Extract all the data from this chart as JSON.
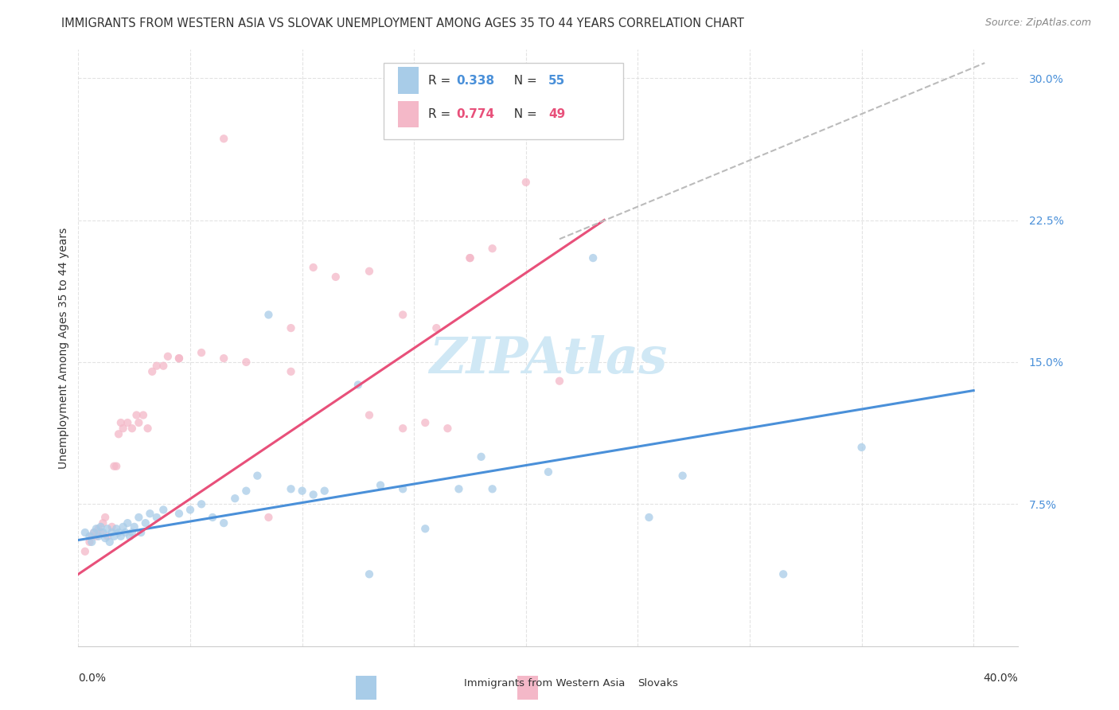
{
  "title": "IMMIGRANTS FROM WESTERN ASIA VS SLOVAK UNEMPLOYMENT AMONG AGES 35 TO 44 YEARS CORRELATION CHART",
  "source": "Source: ZipAtlas.com",
  "ylabel": "Unemployment Among Ages 35 to 44 years",
  "ytick_vals": [
    0.075,
    0.15,
    0.225,
    0.3
  ],
  "ytick_labels": [
    "7.5%",
    "15.0%",
    "22.5%",
    "30.0%"
  ],
  "xlim": [
    0.0,
    0.42
  ],
  "ylim": [
    0.0,
    0.315
  ],
  "legend_r_blue": "0.338",
  "legend_n_blue": "55",
  "legend_r_pink": "0.774",
  "legend_n_pink": "49",
  "legend_label_blue": "Immigrants from Western Asia",
  "legend_label_pink": "Slovaks",
  "blue_color": "#a8cce8",
  "pink_color": "#f4b8c8",
  "blue_line_color": "#4a90d9",
  "pink_line_color": "#e8507a",
  "dashed_line_color": "#bbbbbb",
  "text_color": "#333333",
  "ytick_color": "#4a90d9",
  "watermark_color": "#d0e8f5",
  "blue_scatter_x": [
    0.003,
    0.005,
    0.006,
    0.007,
    0.008,
    0.009,
    0.01,
    0.011,
    0.012,
    0.013,
    0.014,
    0.015,
    0.016,
    0.017,
    0.018,
    0.019,
    0.02,
    0.021,
    0.022,
    0.023,
    0.024,
    0.025,
    0.027,
    0.028,
    0.03,
    0.032,
    0.035,
    0.038,
    0.045,
    0.05,
    0.055,
    0.06,
    0.065,
    0.07,
    0.075,
    0.08,
    0.085,
    0.095,
    0.1,
    0.105,
    0.11,
    0.125,
    0.135,
    0.145,
    0.155,
    0.17,
    0.185,
    0.21,
    0.23,
    0.255,
    0.27,
    0.315,
    0.35,
    0.18,
    0.13
  ],
  "blue_scatter_y": [
    0.06,
    0.058,
    0.055,
    0.06,
    0.062,
    0.058,
    0.063,
    0.06,
    0.057,
    0.062,
    0.055,
    0.06,
    0.058,
    0.062,
    0.06,
    0.058,
    0.063,
    0.06,
    0.065,
    0.058,
    0.06,
    0.063,
    0.068,
    0.06,
    0.065,
    0.07,
    0.068,
    0.072,
    0.07,
    0.072,
    0.075,
    0.068,
    0.065,
    0.078,
    0.082,
    0.09,
    0.175,
    0.083,
    0.082,
    0.08,
    0.082,
    0.138,
    0.085,
    0.083,
    0.062,
    0.083,
    0.083,
    0.092,
    0.205,
    0.068,
    0.09,
    0.038,
    0.105,
    0.1,
    0.038
  ],
  "pink_scatter_x": [
    0.003,
    0.005,
    0.006,
    0.007,
    0.008,
    0.009,
    0.01,
    0.011,
    0.012,
    0.013,
    0.015,
    0.016,
    0.017,
    0.018,
    0.019,
    0.02,
    0.022,
    0.024,
    0.026,
    0.027,
    0.029,
    0.031,
    0.033,
    0.035,
    0.038,
    0.04,
    0.045,
    0.055,
    0.065,
    0.075,
    0.085,
    0.095,
    0.105,
    0.115,
    0.13,
    0.145,
    0.155,
    0.165,
    0.175,
    0.185,
    0.2,
    0.215,
    0.16,
    0.145,
    0.175,
    0.13,
    0.095,
    0.065,
    0.045
  ],
  "pink_scatter_y": [
    0.05,
    0.055,
    0.058,
    0.06,
    0.058,
    0.062,
    0.06,
    0.065,
    0.068,
    0.058,
    0.063,
    0.095,
    0.095,
    0.112,
    0.118,
    0.115,
    0.118,
    0.115,
    0.122,
    0.118,
    0.122,
    0.115,
    0.145,
    0.148,
    0.148,
    0.153,
    0.152,
    0.155,
    0.152,
    0.15,
    0.068,
    0.145,
    0.2,
    0.195,
    0.122,
    0.115,
    0.118,
    0.115,
    0.205,
    0.21,
    0.245,
    0.14,
    0.168,
    0.175,
    0.205,
    0.198,
    0.168,
    0.268,
    0.152
  ],
  "blue_line_x": [
    0.0,
    0.4
  ],
  "blue_line_y": [
    0.056,
    0.135
  ],
  "pink_line_x": [
    0.0,
    0.235
  ],
  "pink_line_y": [
    0.038,
    0.225
  ],
  "dashed_line_x": [
    0.215,
    0.405
  ],
  "dashed_line_y": [
    0.215,
    0.308
  ],
  "title_fontsize": 10.5,
  "source_fontsize": 9,
  "axis_label_fontsize": 10,
  "tick_fontsize": 10,
  "legend_fontsize": 11,
  "scatter_size": 55,
  "scatter_alpha": 0.75,
  "background_color": "#ffffff",
  "grid_color": "#e0e0e0",
  "grid_style": "--"
}
